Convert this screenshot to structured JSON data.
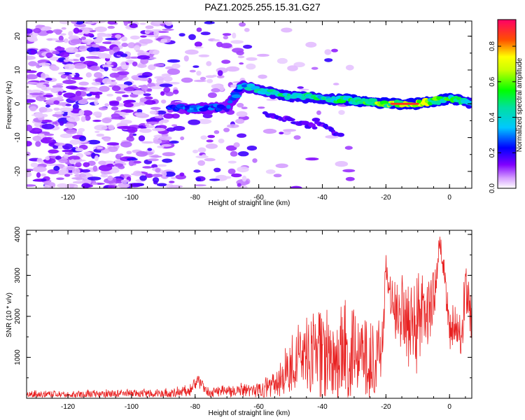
{
  "title": "PAZ1.2025.255.15.31.G27",
  "chart_data": [
    {
      "type": "heatmap",
      "xlabel": "Height of straight line (km)",
      "ylabel": "Frequency (Hz)",
      "xlim": [
        -133,
        7
      ],
      "ylim": [
        -25,
        24.5
      ],
      "xticks": [
        -120,
        -100,
        -80,
        -60,
        -40,
        -20,
        0
      ],
      "yticks": [
        -20,
        -10,
        0,
        10,
        20
      ],
      "colorbar": {
        "label": "Normalized spectral amplitude",
        "range": [
          0,
          0.95
        ],
        "ticks": [
          0.0,
          0.2,
          0.4,
          0.6,
          0.8
        ],
        "tick_labels": [
          "0.0",
          "0.2",
          "0.4",
          "0.6",
          "0.8"
        ]
      },
      "ridge": {
        "x": [
          -88,
          -80,
          -70,
          -65,
          -60,
          -52,
          -45,
          -38,
          -30,
          -20,
          -10,
          -3,
          1,
          7
        ],
        "y": [
          -1,
          -1.5,
          -1,
          5.5,
          4,
          2.5,
          2,
          1.5,
          1,
          0,
          0,
          1,
          1.5,
          0
        ],
        "amplitude": [
          0.25,
          0.35,
          0.3,
          0.4,
          0.45,
          0.5,
          0.5,
          0.5,
          0.55,
          0.7,
          0.8,
          0.6,
          0.55,
          0.5
        ]
      },
      "branches": [
        {
          "x": [
            -58,
            -52,
            -46,
            -42
          ],
          "y": [
            -3,
            -4.5,
            -6,
            -7
          ]
        },
        {
          "x": [
            -42,
            -38,
            -34
          ],
          "y": [
            -5,
            -7.5,
            -9.5
          ]
        }
      ]
    },
    {
      "type": "line",
      "xlabel": "Height of straight line (km)",
      "ylabel": "SNR (10 * v/v)",
      "xlim": [
        -133,
        7
      ],
      "ylim": [
        0,
        4100
      ],
      "xticks": [
        -120,
        -100,
        -80,
        -60,
        -40,
        -20,
        0
      ],
      "yticks": [
        1000,
        2000,
        3000,
        4000
      ],
      "color": "#e82020",
      "envelope": {
        "x": [
          -133,
          -90,
          -82,
          -79,
          -76,
          -60,
          -55,
          -50,
          -45,
          -40,
          -30,
          -25,
          -21,
          -20,
          -18,
          -10,
          -5,
          -3,
          0,
          4,
          5,
          7
        ],
        "mean": [
          90,
          110,
          170,
          450,
          150,
          180,
          350,
          800,
          1050,
          1100,
          1050,
          900,
          1000,
          3400,
          2300,
          1800,
          2300,
          3900,
          1800,
          1600,
          2800,
          1800
        ],
        "spread": [
          90,
          110,
          150,
          150,
          140,
          200,
          300,
          700,
          950,
          1200,
          1300,
          1100,
          1100,
          800,
          800,
          1200,
          900,
          200,
          600,
          500,
          1000,
          600
        ]
      }
    }
  ]
}
